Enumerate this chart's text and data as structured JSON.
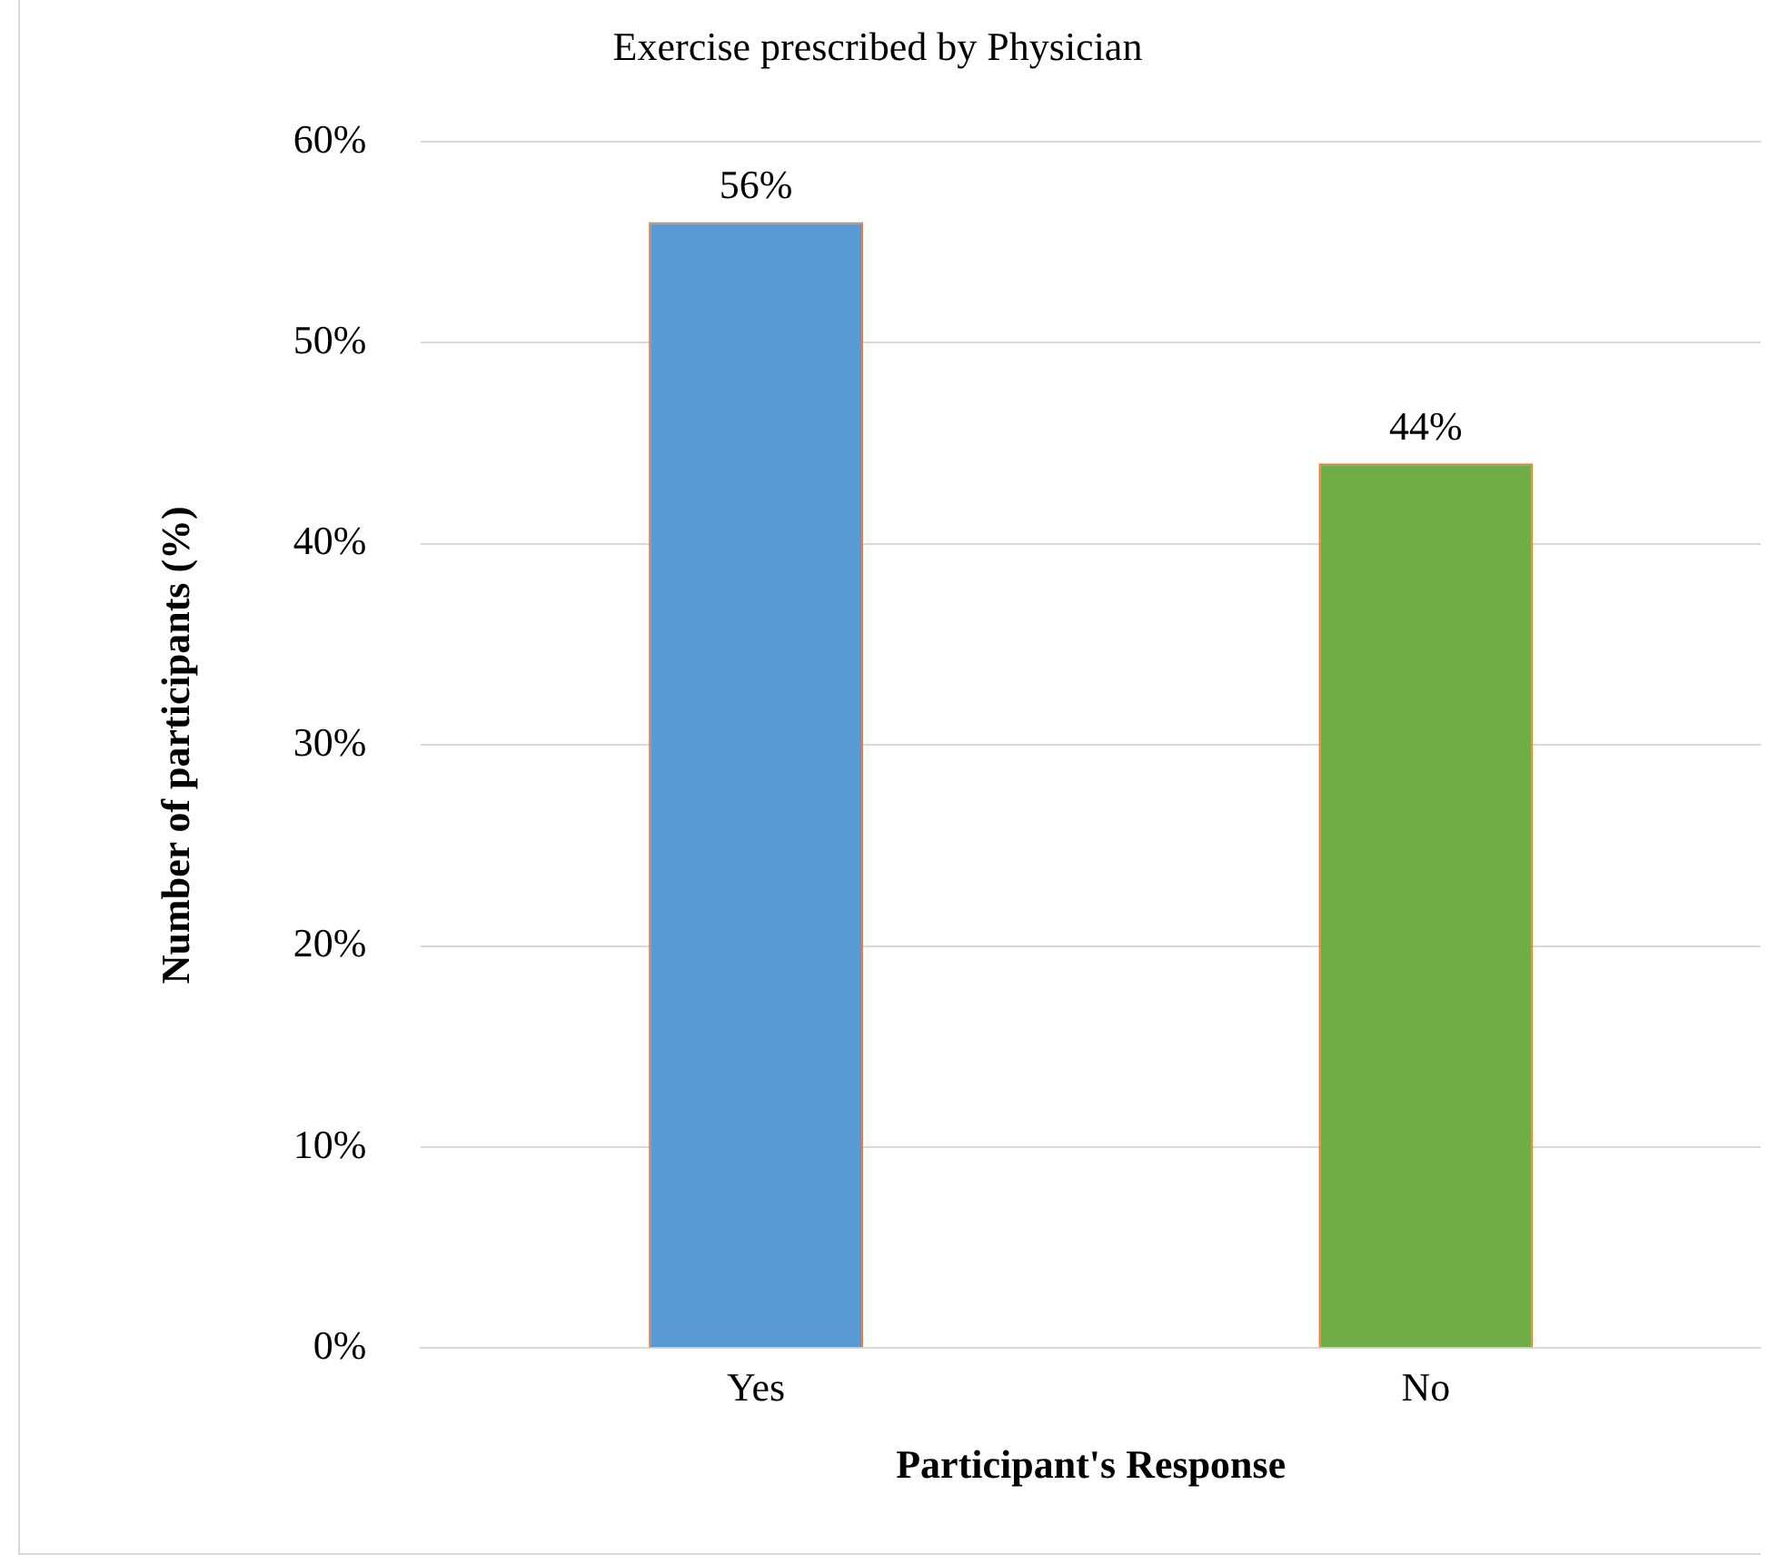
{
  "chart_data": {
    "type": "bar",
    "title": "Exercise prescribed by Physician",
    "xlabel": "Participant's Response",
    "ylabel": "Number of participants (%)",
    "categories": [
      "Yes",
      "No"
    ],
    "values": [
      56,
      44
    ],
    "colors": [
      "#5b9bd5",
      "#70ad47"
    ],
    "value_labels": [
      "56%",
      "44%"
    ],
    "ylim": [
      0,
      60
    ],
    "yticks": [
      {
        "value": 0,
        "label": "0%"
      },
      {
        "value": 10,
        "label": "10%"
      },
      {
        "value": 20,
        "label": "20%"
      },
      {
        "value": 30,
        "label": "30%"
      },
      {
        "value": 40,
        "label": "40%"
      },
      {
        "value": 50,
        "label": "50%"
      },
      {
        "value": 60,
        "label": "60%"
      }
    ],
    "grid": "y",
    "legend": false
  }
}
